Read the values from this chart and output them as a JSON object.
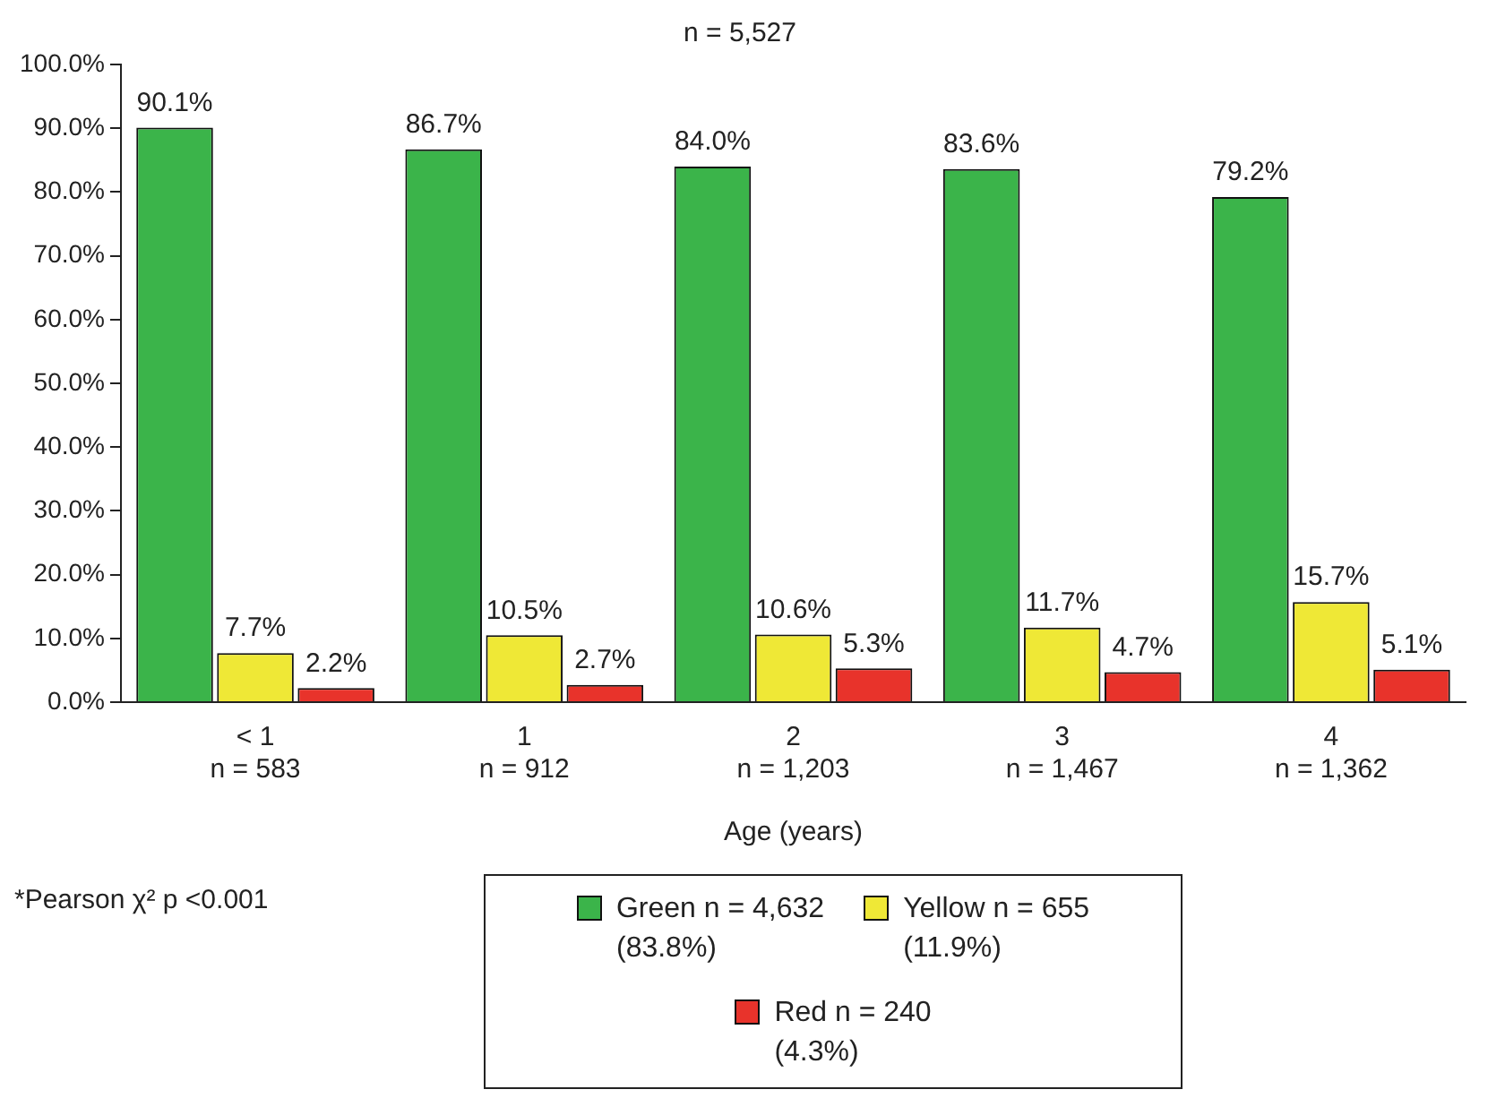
{
  "chart_data": {
    "type": "bar",
    "title": "n = 5,527",
    "xlabel": "Age (years)",
    "categories": [
      "< 1\nn = 583",
      "1\nn = 912",
      "2\nn = 1,203",
      "3\nn = 1,467",
      "4\nn = 1,362"
    ],
    "series": [
      {
        "name": "Green n = 4,632\n(83.8%)",
        "color": "#3bb44a",
        "values": [
          90.1,
          86.7,
          84.0,
          83.6,
          79.2
        ],
        "value_labels": [
          "90.1%",
          "86.7%",
          "84.0%",
          "83.6%",
          "79.2%"
        ]
      },
      {
        "name": "Yellow n = 655\n(11.9%)",
        "color": "#efe836",
        "values": [
          7.7,
          10.5,
          10.6,
          11.7,
          15.7
        ],
        "value_labels": [
          "7.7%",
          "10.5%",
          "10.6%",
          "11.7%",
          "15.7%"
        ]
      },
      {
        "name": "Red n = 240\n(4.3%)",
        "color": "#e8332b",
        "values": [
          2.2,
          2.7,
          5.3,
          4.7,
          5.1
        ],
        "value_labels": [
          "2.2%",
          "2.7%",
          "5.3%",
          "4.7%",
          "5.1%"
        ]
      }
    ],
    "ylim": [
      0,
      100
    ],
    "yticks": [
      {
        "value": 0,
        "label": "0.0%"
      },
      {
        "value": 10,
        "label": "10.0%"
      },
      {
        "value": 20,
        "label": "20.0%"
      },
      {
        "value": 30,
        "label": "30.0%"
      },
      {
        "value": 40,
        "label": "40.0%"
      },
      {
        "value": 50,
        "label": "50.0%"
      },
      {
        "value": 60,
        "label": "60.0%"
      },
      {
        "value": 70,
        "label": "70.0%"
      },
      {
        "value": 80,
        "label": "80.0%"
      },
      {
        "value": 90,
        "label": "90.0%"
      },
      {
        "value": 100,
        "label": "100.0%"
      }
    ],
    "grid": false,
    "legend": "bottom",
    "annotations": [
      "*Pearson χ² p <0.001"
    ]
  }
}
